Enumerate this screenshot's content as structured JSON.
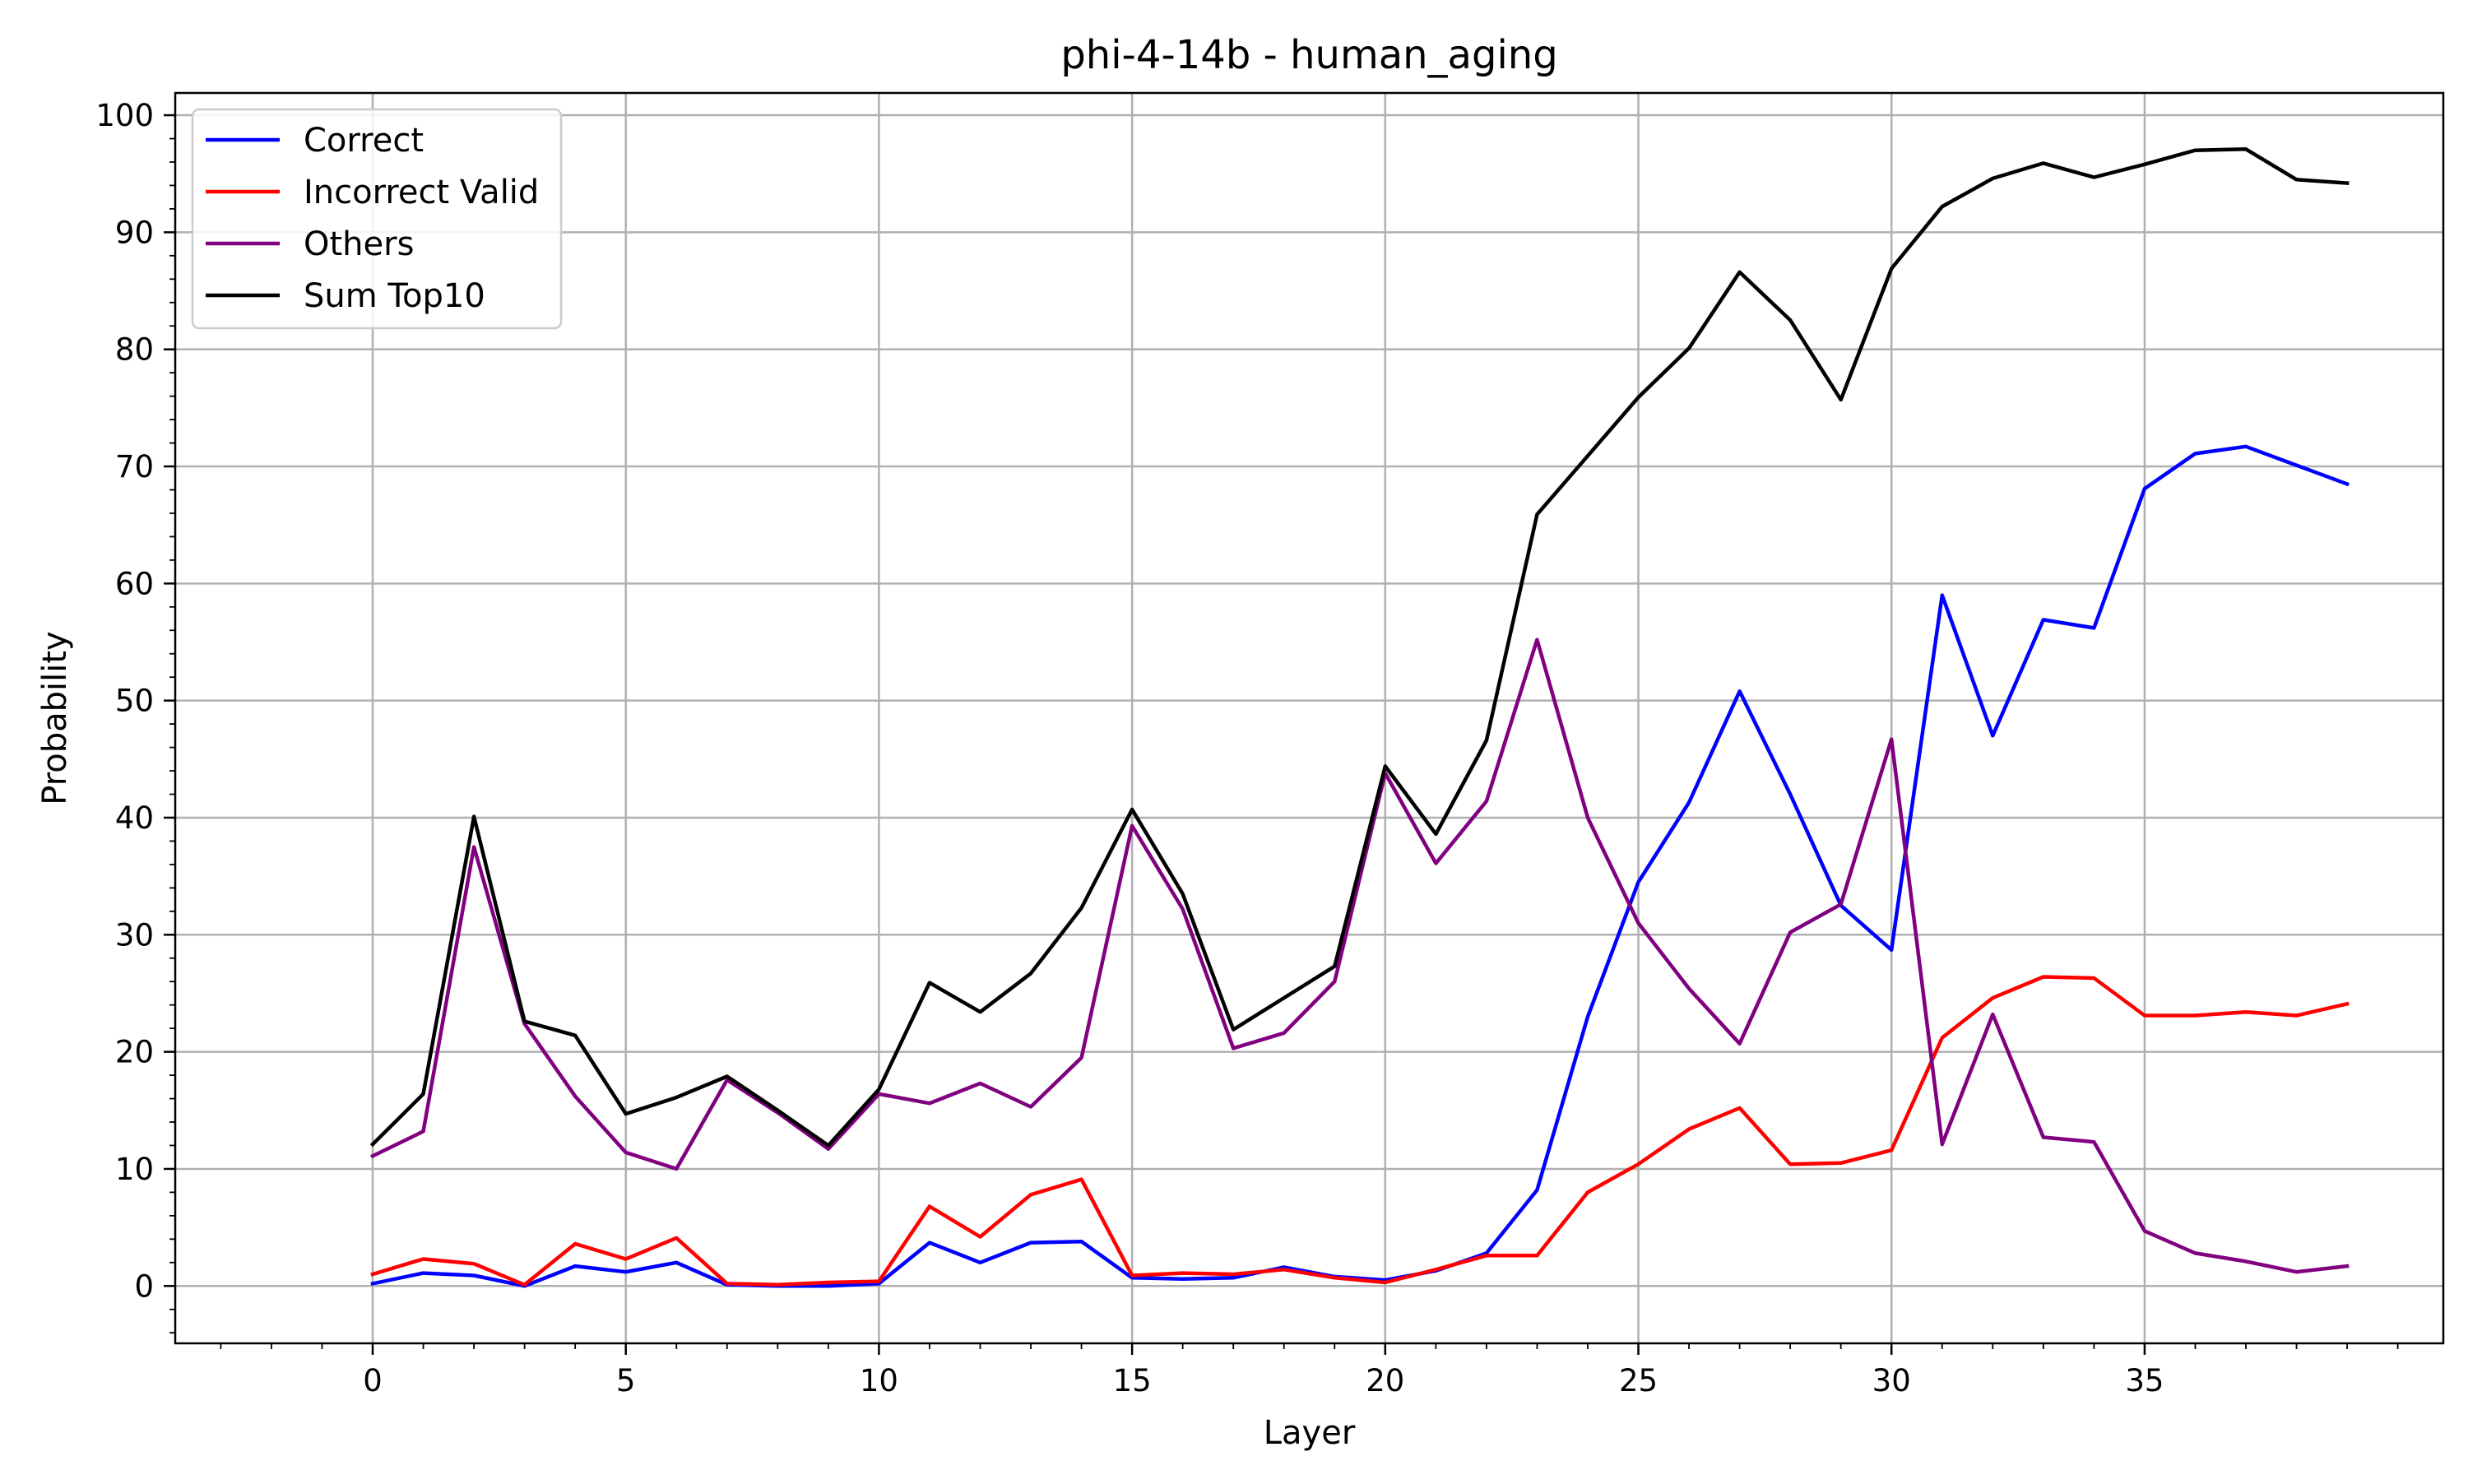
{
  "chart_data": {
    "type": "line",
    "title": "phi-4-14b - human_aging",
    "xlabel": "Layer",
    "ylabel": "Probability",
    "xlim": [
      -3.9,
      40.9
    ],
    "ylim": [
      -4.9,
      101.9
    ],
    "xticks": [
      0,
      5,
      10,
      15,
      20,
      25,
      30,
      35
    ],
    "yticks": [
      0,
      10,
      20,
      30,
      40,
      50,
      60,
      70,
      80,
      90,
      100
    ],
    "grid": true,
    "legend_position": "upper-left",
    "x": [
      0,
      1,
      2,
      3,
      4,
      5,
      6,
      7,
      8,
      9,
      10,
      11,
      12,
      13,
      14,
      15,
      16,
      17,
      18,
      19,
      20,
      21,
      22,
      23,
      24,
      25,
      26,
      27,
      28,
      29,
      30,
      31,
      32,
      33,
      34,
      35,
      36,
      37,
      38,
      39
    ],
    "series": [
      {
        "name": "Correct",
        "color": "#0000ff",
        "values": [
          0.2,
          1.1,
          0.9,
          0.0,
          1.7,
          1.2,
          2.0,
          0.1,
          0.0,
          0.0,
          0.2,
          3.7,
          2.0,
          3.7,
          3.8,
          0.7,
          0.6,
          0.7,
          1.6,
          0.8,
          0.5,
          1.3,
          2.8,
          8.2,
          23.0,
          34.5,
          41.3,
          50.8,
          42.0,
          32.5,
          28.7,
          59.0,
          47.0,
          56.9,
          56.2,
          68.1,
          71.1,
          71.7,
          70.1,
          68.5
        ]
      },
      {
        "name": "Incorrect Valid",
        "color": "#ff0000",
        "values": [
          1.0,
          2.3,
          1.9,
          0.1,
          3.6,
          2.3,
          4.1,
          0.2,
          0.1,
          0.3,
          0.4,
          6.8,
          4.2,
          7.8,
          9.1,
          0.9,
          1.1,
          1.0,
          1.4,
          0.7,
          0.3,
          1.4,
          2.6,
          2.6,
          8.0,
          10.4,
          13.4,
          15.2,
          10.4,
          10.5,
          11.6,
          21.2,
          24.6,
          26.4,
          26.3,
          23.1,
          23.1,
          23.4,
          23.1,
          24.1
        ]
      },
      {
        "name": "Others",
        "color": "#800080",
        "values": [
          11.1,
          13.2,
          37.5,
          22.4,
          16.2,
          11.4,
          10.0,
          17.6,
          14.8,
          11.7,
          16.4,
          15.6,
          17.3,
          15.3,
          19.5,
          39.3,
          32.2,
          20.3,
          21.6,
          26.0,
          43.8,
          36.1,
          41.4,
          55.2,
          40.0,
          31.0,
          25.4,
          20.7,
          30.2,
          32.6,
          46.7,
          12.1,
          23.2,
          12.7,
          12.3,
          4.7,
          2.8,
          2.1,
          1.2,
          1.7
        ]
      },
      {
        "name": "Sum Top10",
        "color": "#000000",
        "values": [
          12.1,
          16.4,
          40.1,
          22.6,
          21.4,
          14.7,
          16.1,
          17.9,
          15.0,
          12.0,
          16.8,
          25.9,
          23.4,
          26.7,
          32.3,
          40.7,
          33.5,
          21.9,
          24.6,
          27.3,
          44.4,
          38.6,
          46.6,
          65.9,
          70.9,
          75.9,
          80.1,
          86.6,
          82.5,
          75.7,
          86.9,
          92.2,
          94.6,
          95.9,
          94.7,
          95.8,
          97.0,
          97.1,
          94.5,
          94.2
        ]
      }
    ]
  }
}
